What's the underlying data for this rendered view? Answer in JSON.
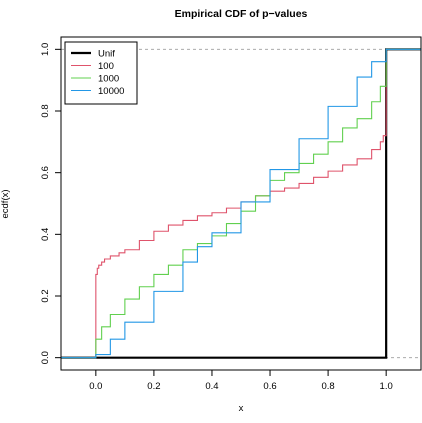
{
  "chart_data": {
    "type": "line",
    "title": "Empirical CDF of p−values",
    "xlabel": "x",
    "ylabel": "ecdf(x)",
    "xlim": [
      -0.12,
      1.12
    ],
    "ylim": [
      -0.04,
      1.04
    ],
    "x_ticks": [
      "0.0",
      "0.2",
      "0.4",
      "0.6",
      "0.8",
      "1.0"
    ],
    "y_ticks": [
      "0.0",
      "0.2",
      "0.4",
      "0.6",
      "0.8",
      "1.0"
    ],
    "x_tick_values": [
      0,
      0.2,
      0.4,
      0.6,
      0.8,
      1.0
    ],
    "y_tick_values": [
      0,
      0.2,
      0.4,
      0.6,
      0.8,
      1.0
    ],
    "reference_lines": [
      0,
      1
    ],
    "legend_position": "top-left",
    "series": [
      {
        "name": "Unif",
        "color": "#000000",
        "x": [
          -0.12,
          0,
          1,
          1.12
        ],
        "y": [
          0,
          0,
          1,
          1
        ]
      },
      {
        "name": "100",
        "color": "#DF536B",
        "x": [
          -0.12,
          0,
          0,
          0.005,
          0.01,
          0.02,
          0.03,
          0.05,
          0.08,
          0.1,
          0.15,
          0.2,
          0.25,
          0.3,
          0.35,
          0.4,
          0.45,
          0.5,
          0.55,
          0.6,
          0.65,
          0.7,
          0.75,
          0.8,
          0.85,
          0.9,
          0.95,
          0.98,
          0.99,
          1,
          1,
          1.12
        ],
        "y": [
          0,
          0,
          0.27,
          0.29,
          0.3,
          0.31,
          0.32,
          0.33,
          0.34,
          0.35,
          0.38,
          0.41,
          0.43,
          0.445,
          0.46,
          0.47,
          0.485,
          0.505,
          0.525,
          0.54,
          0.55,
          0.565,
          0.585,
          0.605,
          0.625,
          0.645,
          0.675,
          0.7,
          0.72,
          0.73,
          1,
          1
        ]
      },
      {
        "name": "1000",
        "color": "#61D04F",
        "x": [
          -0.12,
          0,
          0,
          0.02,
          0.05,
          0.1,
          0.15,
          0.2,
          0.25,
          0.3,
          0.35,
          0.4,
          0.45,
          0.5,
          0.55,
          0.6,
          0.65,
          0.7,
          0.75,
          0.8,
          0.85,
          0.9,
          0.95,
          0.98,
          1,
          1,
          1.12
        ],
        "y": [
          0,
          0,
          0.06,
          0.1,
          0.14,
          0.19,
          0.23,
          0.27,
          0.3,
          0.35,
          0.37,
          0.395,
          0.435,
          0.475,
          0.525,
          0.575,
          0.6,
          0.63,
          0.66,
          0.7,
          0.745,
          0.775,
          0.83,
          0.88,
          0.93,
          1,
          1
        ]
      },
      {
        "name": "10000",
        "color": "#2297E6",
        "x": [
          -0.12,
          0,
          0,
          0.05,
          0.1,
          0.2,
          0.3,
          0.35,
          0.4,
          0.5,
          0.6,
          0.7,
          0.8,
          0.9,
          0.95,
          1,
          1,
          1.12
        ],
        "y": [
          0,
          0,
          0.01,
          0.06,
          0.115,
          0.215,
          0.31,
          0.36,
          0.405,
          0.505,
          0.61,
          0.71,
          0.815,
          0.91,
          0.96,
          0.99,
          1,
          1
        ]
      }
    ]
  },
  "colors": {
    "axis": "#000000",
    "reference_line": "#9E9E9E"
  }
}
